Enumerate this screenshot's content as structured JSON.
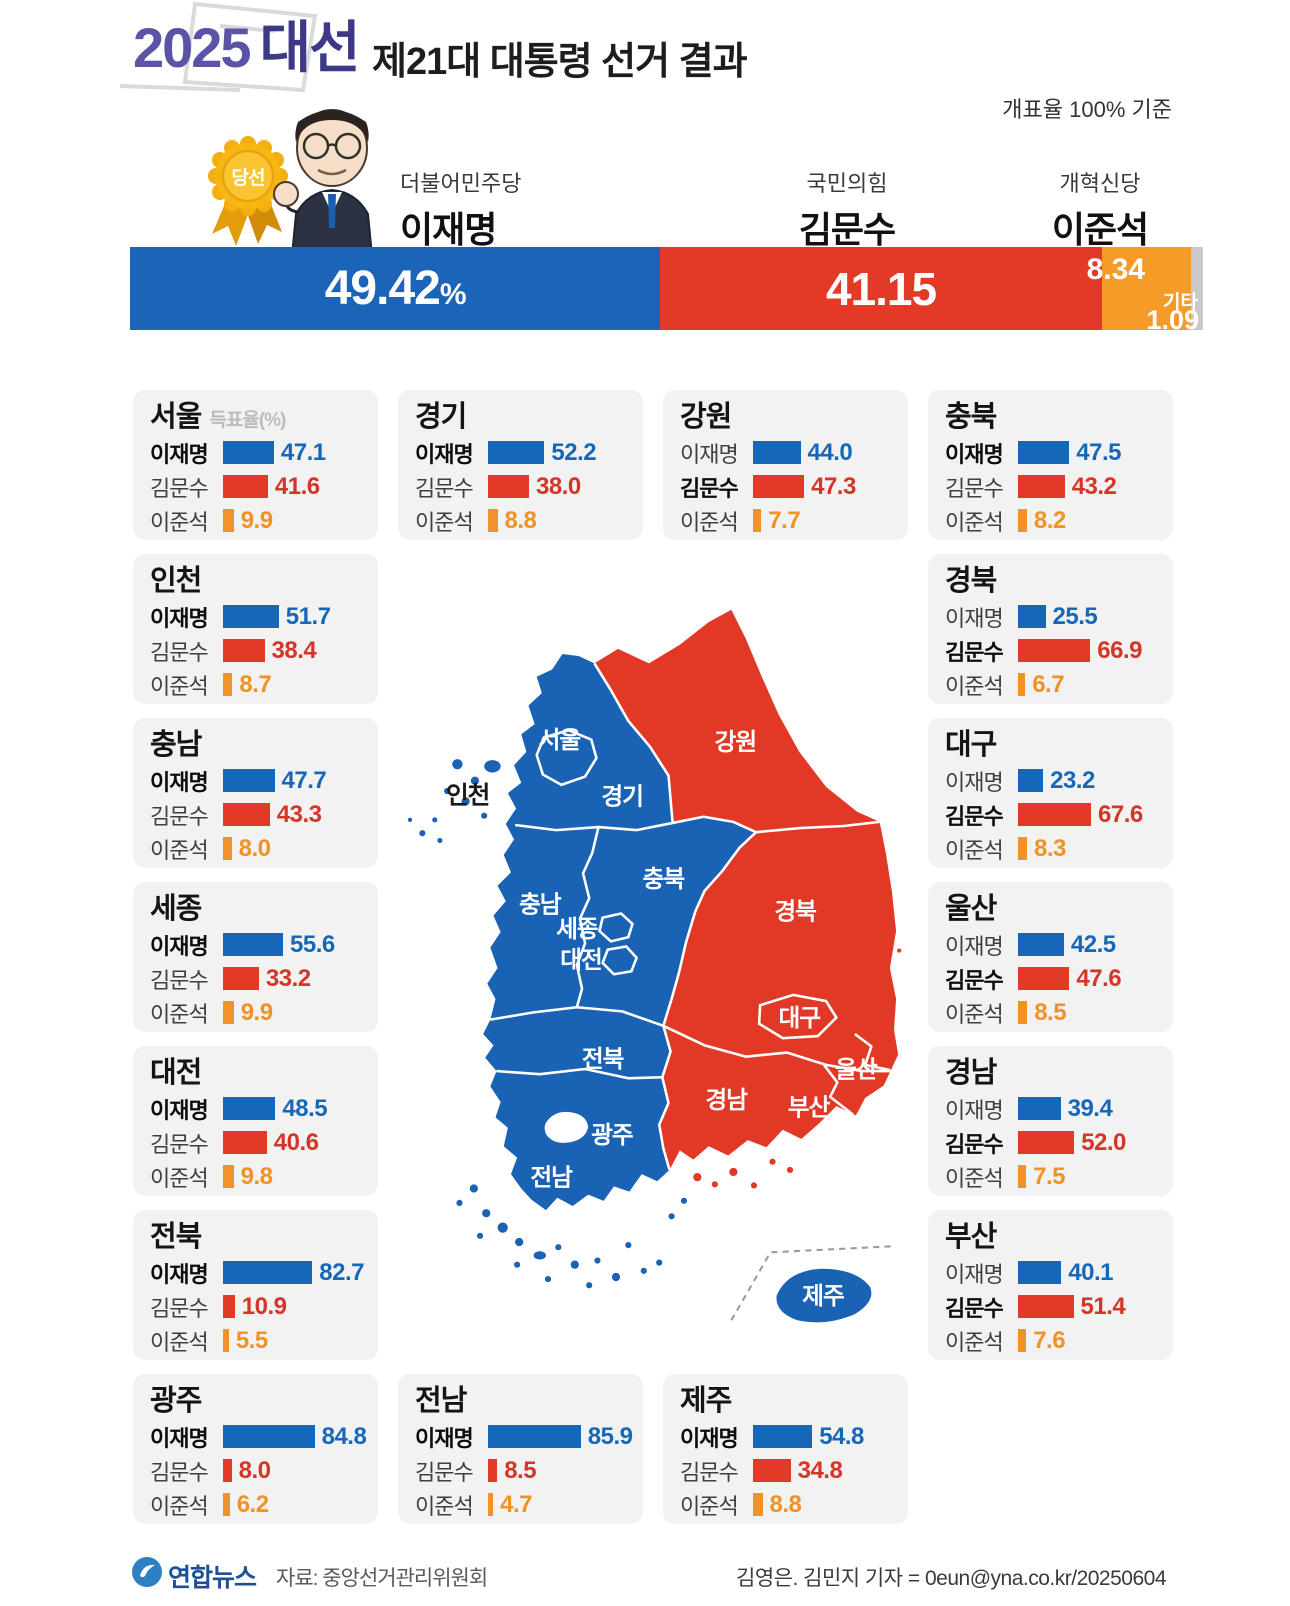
{
  "header": {
    "logo_year": "2025",
    "logo_word": "대선",
    "title": "제21대 대통령 선거 결과",
    "count_note": "개표율 100% 기준",
    "winner_badge": "당선"
  },
  "candidates": [
    {
      "party": "더불어민주당",
      "name": "이재명",
      "value": "49.42",
      "unit": "%",
      "color": "#1b64b8"
    },
    {
      "party": "국민의힘",
      "name": "김문수",
      "value": "41.15",
      "color": "#e23a26"
    },
    {
      "party": "개혁신당",
      "name": "이준석",
      "value": "8.34",
      "color": "#f59b28"
    }
  ],
  "others": {
    "label": "기타",
    "value": "1.09",
    "color": "#c9c9c9"
  },
  "region_cards": [
    {
      "name": "서울",
      "note": "득표율(%)",
      "col": 0,
      "row": 0,
      "rows": [
        {
          "candidate": "이재명",
          "value": "47.1"
        },
        {
          "candidate": "김문수",
          "value": "41.6"
        },
        {
          "candidate": "이준석",
          "value": "9.9"
        }
      ]
    },
    {
      "name": "경기",
      "col": 1,
      "row": 0,
      "rows": [
        {
          "candidate": "이재명",
          "value": "52.2"
        },
        {
          "candidate": "김문수",
          "value": "38.0"
        },
        {
          "candidate": "이준석",
          "value": "8.8"
        }
      ]
    },
    {
      "name": "강원",
      "col": 2,
      "row": 0,
      "rows": [
        {
          "candidate": "이재명",
          "value": "44.0"
        },
        {
          "candidate": "김문수",
          "value": "47.3"
        },
        {
          "candidate": "이준석",
          "value": "7.7"
        }
      ]
    },
    {
      "name": "충북",
      "col": 3,
      "row": 0,
      "rows": [
        {
          "candidate": "이재명",
          "value": "47.5"
        },
        {
          "candidate": "김문수",
          "value": "43.2"
        },
        {
          "candidate": "이준석",
          "value": "8.2"
        }
      ]
    },
    {
      "name": "인천",
      "col": 0,
      "row": 1,
      "rows": [
        {
          "candidate": "이재명",
          "value": "51.7"
        },
        {
          "candidate": "김문수",
          "value": "38.4"
        },
        {
          "candidate": "이준석",
          "value": "8.7"
        }
      ]
    },
    {
      "name": "경북",
      "col": 3,
      "row": 1,
      "rows": [
        {
          "candidate": "이재명",
          "value": "25.5"
        },
        {
          "candidate": "김문수",
          "value": "66.9"
        },
        {
          "candidate": "이준석",
          "value": "6.7"
        }
      ]
    },
    {
      "name": "충남",
      "col": 0,
      "row": 2,
      "rows": [
        {
          "candidate": "이재명",
          "value": "47.7"
        },
        {
          "candidate": "김문수",
          "value": "43.3"
        },
        {
          "candidate": "이준석",
          "value": "8.0"
        }
      ]
    },
    {
      "name": "대구",
      "col": 3,
      "row": 2,
      "rows": [
        {
          "candidate": "이재명",
          "value": "23.2"
        },
        {
          "candidate": "김문수",
          "value": "67.6"
        },
        {
          "candidate": "이준석",
          "value": "8.3"
        }
      ]
    },
    {
      "name": "세종",
      "col": 0,
      "row": 3,
      "rows": [
        {
          "candidate": "이재명",
          "value": "55.6"
        },
        {
          "candidate": "김문수",
          "value": "33.2"
        },
        {
          "candidate": "이준석",
          "value": "9.9"
        }
      ]
    },
    {
      "name": "울산",
      "col": 3,
      "row": 3,
      "rows": [
        {
          "candidate": "이재명",
          "value": "42.5"
        },
        {
          "candidate": "김문수",
          "value": "47.6"
        },
        {
          "candidate": "이준석",
          "value": "8.5"
        }
      ]
    },
    {
      "name": "대전",
      "col": 0,
      "row": 4,
      "rows": [
        {
          "candidate": "이재명",
          "value": "48.5"
        },
        {
          "candidate": "김문수",
          "value": "40.6"
        },
        {
          "candidate": "이준석",
          "value": "9.8"
        }
      ]
    },
    {
      "name": "경남",
      "col": 3,
      "row": 4,
      "rows": [
        {
          "candidate": "이재명",
          "value": "39.4"
        },
        {
          "candidate": "김문수",
          "value": "52.0"
        },
        {
          "candidate": "이준석",
          "value": "7.5"
        }
      ]
    },
    {
      "name": "전북",
      "col": 0,
      "row": 5,
      "rows": [
        {
          "candidate": "이재명",
          "value": "82.7"
        },
        {
          "candidate": "김문수",
          "value": "10.9"
        },
        {
          "candidate": "이준석",
          "value": "5.5"
        }
      ]
    },
    {
      "name": "부산",
      "col": 3,
      "row": 5,
      "rows": [
        {
          "candidate": "이재명",
          "value": "40.1"
        },
        {
          "candidate": "김문수",
          "value": "51.4"
        },
        {
          "candidate": "이준석",
          "value": "7.6"
        }
      ]
    },
    {
      "name": "광주",
      "col": 0,
      "row": 6,
      "rows": [
        {
          "candidate": "이재명",
          "value": "84.8"
        },
        {
          "candidate": "김문수",
          "value": "8.0"
        },
        {
          "candidate": "이준석",
          "value": "6.2"
        }
      ]
    },
    {
      "name": "전남",
      "col": 1,
      "row": 6,
      "rows": [
        {
          "candidate": "이재명",
          "value": "85.9"
        },
        {
          "candidate": "김문수",
          "value": "8.5"
        },
        {
          "candidate": "이준석",
          "value": "4.7"
        }
      ]
    },
    {
      "name": "제주",
      "col": 2,
      "row": 6,
      "rows": [
        {
          "candidate": "이재명",
          "value": "54.8"
        },
        {
          "candidate": "김문수",
          "value": "34.8"
        },
        {
          "candidate": "이준석",
          "value": "8.8"
        }
      ]
    }
  ],
  "map": {
    "seoul": "서울",
    "incheon": "인천",
    "gyeonggi": "경기",
    "gangwon": "강원",
    "chungbuk": "충북",
    "chungnam": "충남",
    "sejong": "세종",
    "daejeon": "대전",
    "gyeongbuk": "경북",
    "daegu": "대구",
    "jeonbuk": "전북",
    "gwangju": "광주",
    "ulsan": "울산",
    "gyeongnam": "경남",
    "busan": "부산",
    "jeonnam": "전남",
    "jeju": "제주",
    "lee_color": "#1a63b4",
    "kim_color": "#e23826"
  },
  "footer": {
    "agency": "연합뉴스",
    "source": "자료: 중앙선거관리위원회",
    "credit": "김영은. 김민지 기자 = 0eun@yna.co.kr/20250604"
  },
  "chart_data": {
    "type": "bar",
    "title": "2025 대선 제21대 대통령 선거 결과 (개표율 100% 기준)",
    "national_stacked_bar": {
      "categories": [
        "이재명",
        "김문수",
        "이준석",
        "기타"
      ],
      "values": [
        49.42,
        41.15,
        8.34,
        1.09
      ],
      "unit": "%"
    },
    "regional": {
      "categories": [
        "서울",
        "경기",
        "강원",
        "충북",
        "인천",
        "경북",
        "충남",
        "대구",
        "세종",
        "울산",
        "대전",
        "경남",
        "전북",
        "부산",
        "광주",
        "전남",
        "제주"
      ],
      "series": [
        {
          "name": "이재명",
          "values": [
            47.1,
            52.2,
            44.0,
            47.5,
            51.7,
            25.5,
            47.7,
            23.2,
            55.6,
            42.5,
            48.5,
            39.4,
            82.7,
            40.1,
            84.8,
            85.9,
            54.8
          ]
        },
        {
          "name": "김문수",
          "values": [
            41.6,
            38.0,
            47.3,
            43.2,
            38.4,
            66.9,
            43.3,
            67.6,
            33.2,
            47.6,
            40.6,
            52.0,
            10.9,
            51.4,
            8.0,
            8.5,
            34.8
          ]
        },
        {
          "name": "이준석",
          "values": [
            9.9,
            8.8,
            7.7,
            8.2,
            8.7,
            6.7,
            8.0,
            8.3,
            9.9,
            8.5,
            9.8,
            7.5,
            5.5,
            7.6,
            6.2,
            4.7,
            8.8
          ]
        }
      ],
      "ylabel": "득표율(%)"
    },
    "map_winners": {
      "이재명": [
        "서울",
        "인천",
        "경기",
        "충북",
        "충남",
        "세종",
        "대전",
        "전북",
        "광주",
        "전남",
        "제주"
      ],
      "김문수": [
        "강원",
        "경북",
        "대구",
        "울산",
        "경남",
        "부산"
      ]
    }
  }
}
